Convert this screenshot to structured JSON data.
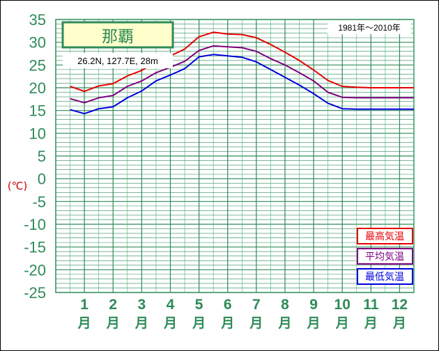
{
  "chart_data": {
    "type": "line",
    "station": "那覇",
    "coords": "26.2N,  127.7E,  28m",
    "period": "1981年〜2010年",
    "unit": "(℃)",
    "ylim": [
      -25,
      35
    ],
    "ytick_labels": [
      "35",
      "30",
      "25",
      "20",
      "15",
      "10",
      "5",
      "0",
      "-5",
      "-10",
      "-15",
      "-20",
      "-25"
    ],
    "ytick_values": [
      35,
      30,
      25,
      20,
      15,
      10,
      5,
      0,
      -5,
      -10,
      -15,
      -20,
      -25
    ],
    "month_numbers": [
      "1",
      "2",
      "3",
      "4",
      "5",
      "6",
      "7",
      "8",
      "9",
      "10",
      "11",
      "12"
    ],
    "month_suffix": "月",
    "x": [
      0.5,
      1,
      1.5,
      2,
      2.5,
      3,
      3.5,
      4,
      4.5,
      5,
      5.5,
      6,
      6.5,
      7,
      7.5,
      8,
      8.5,
      9,
      9.5,
      10,
      10.5,
      11,
      11.5,
      12,
      12.5
    ],
    "grid": true,
    "legend_position": "bottom-right",
    "series": [
      {
        "name": "最高気温",
        "color": "#e60000",
        "values": [
          20.3,
          19.2,
          20.4,
          20.9,
          22.6,
          23.8,
          25.9,
          27.0,
          28.5,
          31.2,
          32.2,
          31.8,
          31.7,
          31.0,
          29.5,
          27.8,
          26.0,
          23.9,
          21.6,
          20.3,
          20.1,
          20.0,
          20.0,
          20.0,
          20.0
        ]
      },
      {
        "name": "平均気温",
        "color": "#800080",
        "values": [
          17.6,
          16.7,
          17.8,
          18.3,
          20.3,
          21.5,
          23.3,
          24.5,
          25.8,
          28.2,
          29.2,
          29.0,
          28.8,
          28.0,
          26.4,
          25.0,
          23.3,
          21.5,
          19.0,
          17.9,
          17.8,
          17.8,
          17.8,
          17.8,
          17.8
        ]
      },
      {
        "name": "最低気温",
        "color": "#0000dd",
        "values": [
          15.2,
          14.3,
          15.4,
          15.8,
          17.8,
          19.3,
          21.5,
          22.8,
          24.2,
          26.8,
          27.3,
          27.0,
          26.7,
          25.7,
          24.0,
          22.3,
          20.6,
          18.7,
          16.6,
          15.4,
          15.3,
          15.3,
          15.3,
          15.3,
          15.3
        ]
      }
    ]
  }
}
